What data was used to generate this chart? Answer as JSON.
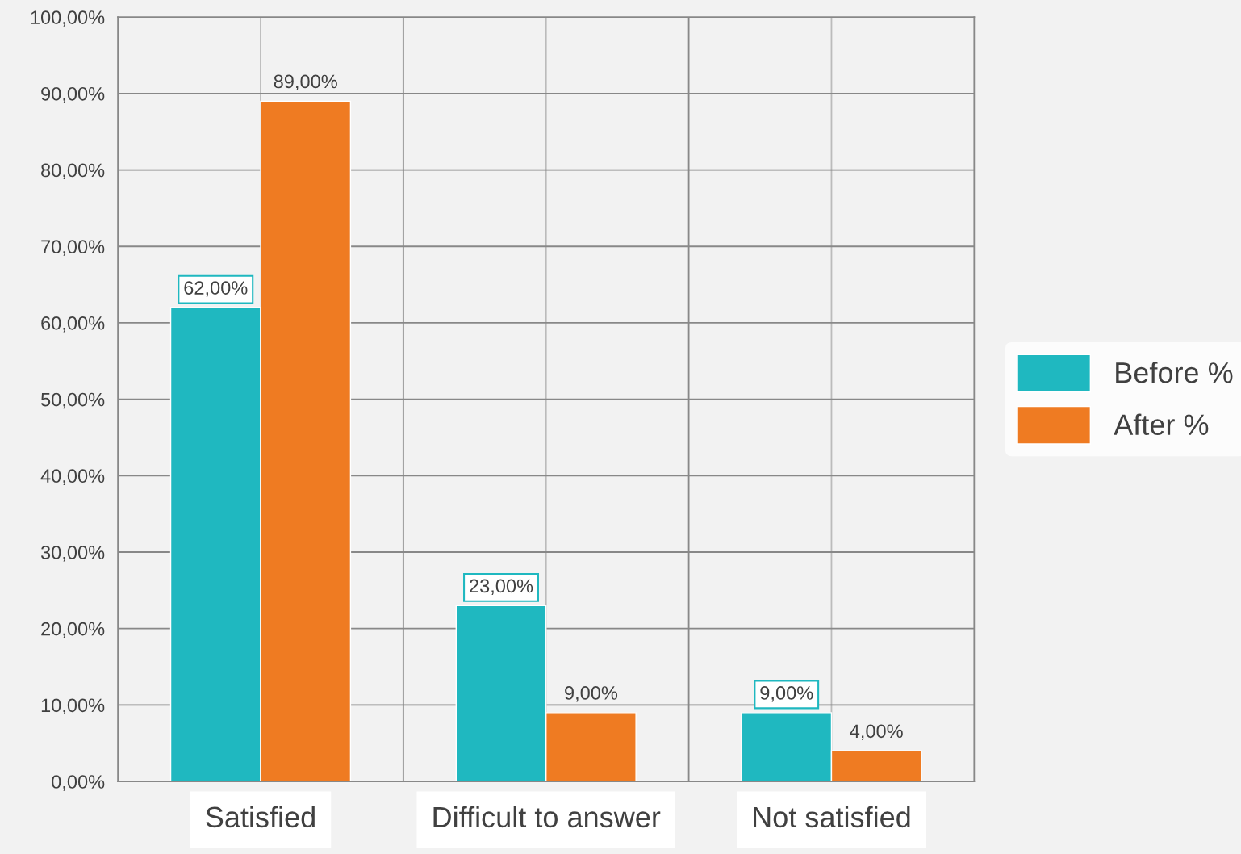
{
  "chart_data": {
    "type": "bar",
    "categories": [
      "Satisfied",
      "Difficult to answer",
      "Not satisfied"
    ],
    "series": [
      {
        "name": "Before %",
        "color": "#1fb8c0",
        "values": [
          62,
          23,
          9
        ],
        "value_labels": [
          "62,00%",
          "23,00%",
          "9,00%"
        ]
      },
      {
        "name": "After %",
        "color": "#ef7b22",
        "values": [
          89,
          9,
          4
        ],
        "value_labels": [
          "89,00%",
          "9,00%",
          "4,00%"
        ]
      }
    ],
    "ylim": [
      0,
      100
    ],
    "yticks": [
      {
        "value": 0,
        "label": "0,00%"
      },
      {
        "value": 10,
        "label": "10,00%"
      },
      {
        "value": 20,
        "label": "20,00%"
      },
      {
        "value": 30,
        "label": "30,00%"
      },
      {
        "value": 40,
        "label": "40,00%"
      },
      {
        "value": 50,
        "label": "50,00%"
      },
      {
        "value": 60,
        "label": "60,00%"
      },
      {
        "value": 70,
        "label": "70,00%"
      },
      {
        "value": 80,
        "label": "80,00%"
      },
      {
        "value": 90,
        "label": "90,00%"
      },
      {
        "value": 100,
        "label": "100,00%"
      }
    ],
    "grid": true,
    "legend": "right"
  }
}
